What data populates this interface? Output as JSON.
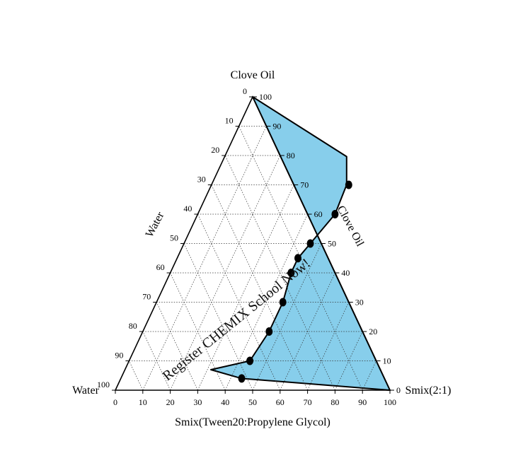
{
  "chart_data": {
    "type": "ternary",
    "vertex_labels": {
      "top": "Clove Oil",
      "left": "Water",
      "right": "Smix(2:1)"
    },
    "axis_labels": {
      "left_side": "Water",
      "right_side": "Clove Oil",
      "bottom": "Smix(Tween20:Propylene Glycol)"
    },
    "ticks": [
      "0",
      "10",
      "20",
      "30",
      "40",
      "50",
      "60",
      "70",
      "80",
      "90",
      "100"
    ],
    "grid": true,
    "region_fill_color": "#87CEEB",
    "boundary_color": "#000000",
    "marker_color": "#000000",
    "watermark": "Register CHEMIX School Now!",
    "points": [
      {
        "clove_oil": 70,
        "smix": 50,
        "water": 0
      },
      {
        "clove_oil": 60,
        "smix": 50,
        "water": 0
      },
      {
        "clove_oil": 50,
        "smix": 46,
        "water": 0
      },
      {
        "clove_oil": 45,
        "smix": 44,
        "water": 0
      },
      {
        "clove_oil": 40,
        "smix": 44,
        "water": 0
      },
      {
        "clove_oil": 30,
        "smix": 46,
        "water": 0
      },
      {
        "clove_oil": 20,
        "smix": 46,
        "water": 0
      },
      {
        "clove_oil": 10,
        "smix": 44,
        "water": 0
      },
      {
        "clove_oil": 4,
        "smix": 44,
        "water": 0
      }
    ]
  }
}
